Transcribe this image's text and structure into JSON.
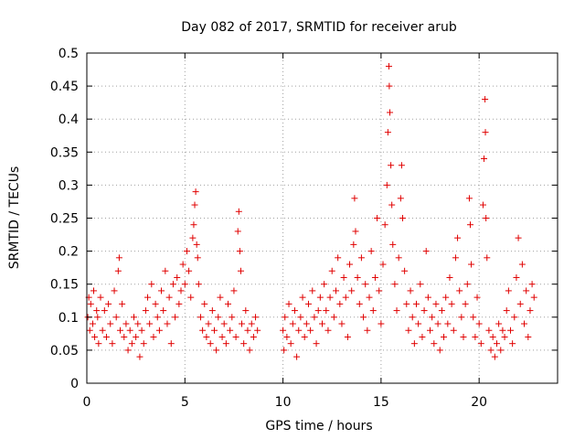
{
  "chart_data": {
    "type": "scatter",
    "title": "Day 082 of 2017, SRMTID for receiver arub",
    "xlabel": "GPS time / hours",
    "ylabel": "SRMTID / TECUs",
    "xlim": [
      0,
      24
    ],
    "ylim": [
      0,
      0.5
    ],
    "xticks": [
      0,
      5,
      10,
      15,
      20
    ],
    "xtick_labels": [
      "0",
      "5",
      "10",
      "15",
      "20"
    ],
    "yticks": [
      0,
      0.05,
      0.1,
      0.15,
      0.2,
      0.25,
      0.3,
      0.35,
      0.4,
      0.45,
      0.5
    ],
    "ytick_labels": [
      "0",
      "0.05",
      "0.1",
      "0.15",
      "0.2",
      "0.25",
      "0.3",
      "0.35",
      "0.4",
      "0.45",
      "0.5"
    ],
    "grid": true,
    "marker": "plus",
    "color": "#e00000",
    "series": [
      {
        "name": "SRMTID",
        "points": [
          [
            0.05,
            0.1
          ],
          [
            0.1,
            0.13
          ],
          [
            0.15,
            0.08
          ],
          [
            0.2,
            0.12
          ],
          [
            0.3,
            0.09
          ],
          [
            0.35,
            0.14
          ],
          [
            0.4,
            0.07
          ],
          [
            0.5,
            0.11
          ],
          [
            0.55,
            0.1
          ],
          [
            0.6,
            0.06
          ],
          [
            0.7,
            0.13
          ],
          [
            0.8,
            0.08
          ],
          [
            0.9,
            0.11
          ],
          [
            1.0,
            0.07
          ],
          [
            1.1,
            0.12
          ],
          [
            1.2,
            0.09
          ],
          [
            1.3,
            0.06
          ],
          [
            1.4,
            0.14
          ],
          [
            1.5,
            0.1
          ],
          [
            1.6,
            0.17
          ],
          [
            1.65,
            0.19
          ],
          [
            1.7,
            0.08
          ],
          [
            1.8,
            0.12
          ],
          [
            1.9,
            0.07
          ],
          [
            2.0,
            0.09
          ],
          [
            2.1,
            0.05
          ],
          [
            2.2,
            0.08
          ],
          [
            2.3,
            0.06
          ],
          [
            2.4,
            0.1
          ],
          [
            2.5,
            0.07
          ],
          [
            2.6,
            0.09
          ],
          [
            2.7,
            0.04
          ],
          [
            2.8,
            0.08
          ],
          [
            2.9,
            0.06
          ],
          [
            3.0,
            0.11
          ],
          [
            3.1,
            0.13
          ],
          [
            3.2,
            0.09
          ],
          [
            3.3,
            0.15
          ],
          [
            3.4,
            0.07
          ],
          [
            3.5,
            0.12
          ],
          [
            3.6,
            0.1
          ],
          [
            3.7,
            0.08
          ],
          [
            3.8,
            0.14
          ],
          [
            3.9,
            0.11
          ],
          [
            4.0,
            0.17
          ],
          [
            4.1,
            0.09
          ],
          [
            4.2,
            0.13
          ],
          [
            4.3,
            0.06
          ],
          [
            4.4,
            0.15
          ],
          [
            4.5,
            0.1
          ],
          [
            4.6,
            0.16
          ],
          [
            4.7,
            0.12
          ],
          [
            4.8,
            0.14
          ],
          [
            4.9,
            0.18
          ],
          [
            5.0,
            0.15
          ],
          [
            5.1,
            0.2
          ],
          [
            5.2,
            0.17
          ],
          [
            5.3,
            0.13
          ],
          [
            5.4,
            0.22
          ],
          [
            5.45,
            0.24
          ],
          [
            5.5,
            0.27
          ],
          [
            5.55,
            0.29
          ],
          [
            5.6,
            0.21
          ],
          [
            5.65,
            0.19
          ],
          [
            5.7,
            0.15
          ],
          [
            5.8,
            0.1
          ],
          [
            5.9,
            0.08
          ],
          [
            6.0,
            0.12
          ],
          [
            6.1,
            0.07
          ],
          [
            6.2,
            0.09
          ],
          [
            6.3,
            0.06
          ],
          [
            6.4,
            0.11
          ],
          [
            6.5,
            0.08
          ],
          [
            6.6,
            0.05
          ],
          [
            6.7,
            0.1
          ],
          [
            6.8,
            0.13
          ],
          [
            6.9,
            0.07
          ],
          [
            7.0,
            0.09
          ],
          [
            7.1,
            0.06
          ],
          [
            7.2,
            0.12
          ],
          [
            7.3,
            0.08
          ],
          [
            7.4,
            0.1
          ],
          [
            7.5,
            0.14
          ],
          [
            7.6,
            0.07
          ],
          [
            7.7,
            0.23
          ],
          [
            7.75,
            0.26
          ],
          [
            7.8,
            0.2
          ],
          [
            7.85,
            0.17
          ],
          [
            7.9,
            0.09
          ],
          [
            8.0,
            0.06
          ],
          [
            8.1,
            0.11
          ],
          [
            8.2,
            0.08
          ],
          [
            8.3,
            0.05
          ],
          [
            8.4,
            0.09
          ],
          [
            8.5,
            0.07
          ],
          [
            8.6,
            0.1
          ],
          [
            8.7,
            0.08
          ],
          [
            10.0,
            0.08
          ],
          [
            10.05,
            0.05
          ],
          [
            10.1,
            0.1
          ],
          [
            10.2,
            0.07
          ],
          [
            10.3,
            0.12
          ],
          [
            10.4,
            0.06
          ],
          [
            10.5,
            0.09
          ],
          [
            10.6,
            0.11
          ],
          [
            10.7,
            0.04
          ],
          [
            10.8,
            0.08
          ],
          [
            10.9,
            0.1
          ],
          [
            11.0,
            0.13
          ],
          [
            11.1,
            0.07
          ],
          [
            11.2,
            0.09
          ],
          [
            11.3,
            0.12
          ],
          [
            11.4,
            0.08
          ],
          [
            11.5,
            0.14
          ],
          [
            11.6,
            0.1
          ],
          [
            11.7,
            0.06
          ],
          [
            11.8,
            0.11
          ],
          [
            11.9,
            0.13
          ],
          [
            12.0,
            0.09
          ],
          [
            12.1,
            0.15
          ],
          [
            12.2,
            0.11
          ],
          [
            12.3,
            0.08
          ],
          [
            12.4,
            0.13
          ],
          [
            12.5,
            0.17
          ],
          [
            12.6,
            0.1
          ],
          [
            12.7,
            0.14
          ],
          [
            12.8,
            0.19
          ],
          [
            12.9,
            0.12
          ],
          [
            13.0,
            0.09
          ],
          [
            13.1,
            0.16
          ],
          [
            13.2,
            0.13
          ],
          [
            13.3,
            0.07
          ],
          [
            13.4,
            0.18
          ],
          [
            13.5,
            0.14
          ],
          [
            13.6,
            0.21
          ],
          [
            13.65,
            0.28
          ],
          [
            13.7,
            0.23
          ],
          [
            13.8,
            0.16
          ],
          [
            13.9,
            0.12
          ],
          [
            14.0,
            0.19
          ],
          [
            14.1,
            0.1
          ],
          [
            14.2,
            0.15
          ],
          [
            14.3,
            0.08
          ],
          [
            14.4,
            0.13
          ],
          [
            14.5,
            0.2
          ],
          [
            14.6,
            0.11
          ],
          [
            14.7,
            0.16
          ],
          [
            14.8,
            0.25
          ],
          [
            14.9,
            0.14
          ],
          [
            15.0,
            0.09
          ],
          [
            15.1,
            0.18
          ],
          [
            15.2,
            0.24
          ],
          [
            15.3,
            0.3
          ],
          [
            15.35,
            0.38
          ],
          [
            15.4,
            0.48
          ],
          [
            15.42,
            0.45
          ],
          [
            15.45,
            0.41
          ],
          [
            15.5,
            0.33
          ],
          [
            15.55,
            0.27
          ],
          [
            15.6,
            0.21
          ],
          [
            15.7,
            0.15
          ],
          [
            15.8,
            0.11
          ],
          [
            15.9,
            0.19
          ],
          [
            16.0,
            0.28
          ],
          [
            16.05,
            0.33
          ],
          [
            16.1,
            0.25
          ],
          [
            16.2,
            0.17
          ],
          [
            16.3,
            0.12
          ],
          [
            16.4,
            0.08
          ],
          [
            16.5,
            0.14
          ],
          [
            16.6,
            0.1
          ],
          [
            16.7,
            0.06
          ],
          [
            16.8,
            0.12
          ],
          [
            16.9,
            0.09
          ],
          [
            17.0,
            0.15
          ],
          [
            17.1,
            0.07
          ],
          [
            17.2,
            0.11
          ],
          [
            17.3,
            0.2
          ],
          [
            17.4,
            0.13
          ],
          [
            17.5,
            0.08
          ],
          [
            17.6,
            0.1
          ],
          [
            17.7,
            0.06
          ],
          [
            17.8,
            0.12
          ],
          [
            17.9,
            0.09
          ],
          [
            18.0,
            0.05
          ],
          [
            18.1,
            0.11
          ],
          [
            18.2,
            0.07
          ],
          [
            18.3,
            0.13
          ],
          [
            18.4,
            0.09
          ],
          [
            18.5,
            0.16
          ],
          [
            18.6,
            0.12
          ],
          [
            18.7,
            0.08
          ],
          [
            18.8,
            0.19
          ],
          [
            18.9,
            0.22
          ],
          [
            19.0,
            0.14
          ],
          [
            19.1,
            0.1
          ],
          [
            19.2,
            0.07
          ],
          [
            19.3,
            0.12
          ],
          [
            19.4,
            0.15
          ],
          [
            19.5,
            0.28
          ],
          [
            19.55,
            0.24
          ],
          [
            19.6,
            0.18
          ],
          [
            19.7,
            0.1
          ],
          [
            19.8,
            0.07
          ],
          [
            19.9,
            0.13
          ],
          [
            20.0,
            0.09
          ],
          [
            20.1,
            0.06
          ],
          [
            20.2,
            0.27
          ],
          [
            20.25,
            0.34
          ],
          [
            20.3,
            0.43
          ],
          [
            20.32,
            0.38
          ],
          [
            20.35,
            0.25
          ],
          [
            20.4,
            0.19
          ],
          [
            20.5,
            0.08
          ],
          [
            20.6,
            0.05
          ],
          [
            20.7,
            0.07
          ],
          [
            20.8,
            0.04
          ],
          [
            20.9,
            0.06
          ],
          [
            21.0,
            0.09
          ],
          [
            21.1,
            0.05
          ],
          [
            21.2,
            0.08
          ],
          [
            21.3,
            0.07
          ],
          [
            21.4,
            0.11
          ],
          [
            21.5,
            0.14
          ],
          [
            21.6,
            0.08
          ],
          [
            21.7,
            0.06
          ],
          [
            21.8,
            0.1
          ],
          [
            21.9,
            0.16
          ],
          [
            22.0,
            0.22
          ],
          [
            22.1,
            0.12
          ],
          [
            22.2,
            0.18
          ],
          [
            22.3,
            0.09
          ],
          [
            22.4,
            0.14
          ],
          [
            22.5,
            0.07
          ],
          [
            22.6,
            0.11
          ],
          [
            22.7,
            0.15
          ],
          [
            22.8,
            0.13
          ]
        ]
      }
    ]
  }
}
